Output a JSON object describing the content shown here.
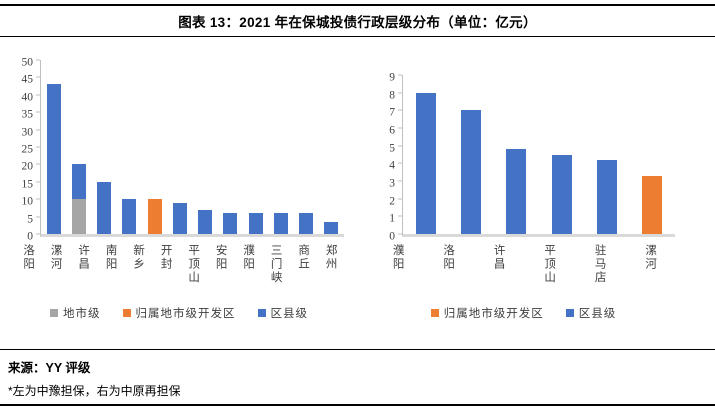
{
  "header": {
    "title": "图表 13：2021 年在保城投债行政层级分布（单位：亿元）"
  },
  "footer": {
    "source": "来源：YY 评级",
    "note": "*左为中豫担保，右为中原再担保"
  },
  "colors": {
    "blue": "#4472C4",
    "orange": "#ED7D31",
    "gray": "#A5A5A5",
    "axis_line": "#BFBFBF",
    "baseline": "#D9D9D9",
    "tick_text": "#404040"
  },
  "chart_data": [
    {
      "type": "bar",
      "stacked": true,
      "title": "",
      "xlabel": "",
      "ylabel": "",
      "categories": [
        "洛阳",
        "漯河",
        "许昌",
        "南阳",
        "新乡",
        "开封",
        "平顶山",
        "安阳",
        "濮阳",
        "三门峡",
        "商丘",
        "郑州"
      ],
      "series": [
        {
          "name": "地市级",
          "color_key": "gray",
          "values": [
            0,
            10,
            0,
            0,
            0,
            0,
            0,
            0,
            0,
            0,
            0,
            0
          ]
        },
        {
          "name": "归属地市级开发区",
          "color_key": "orange",
          "values": [
            0,
            0,
            0,
            0,
            10,
            0,
            0,
            0,
            0,
            0,
            0,
            0
          ]
        },
        {
          "name": "区县级",
          "color_key": "blue",
          "values": [
            43,
            10,
            15,
            10,
            0,
            9,
            7,
            6,
            6,
            6,
            6,
            3.5
          ]
        }
      ],
      "ylim": [
        0,
        50
      ],
      "ytick_step": 5,
      "grid": false,
      "legend_position": "bottom",
      "legend": [
        {
          "label": "地市级",
          "color_key": "gray"
        },
        {
          "label": "归属地市级开发区",
          "color_key": "orange"
        },
        {
          "label": "区县级",
          "color_key": "blue"
        }
      ]
    },
    {
      "type": "bar",
      "stacked": false,
      "title": "",
      "xlabel": "",
      "ylabel": "",
      "categories": [
        "濮阳",
        "洛阳",
        "许昌",
        "平顶山",
        "驻马店",
        "漯河"
      ],
      "series": [
        {
          "name": "归属地市级开发区",
          "color_key": "orange",
          "values": [
            0,
            0,
            0,
            0,
            0,
            3.3
          ]
        },
        {
          "name": "区县级",
          "color_key": "blue",
          "values": [
            8,
            7,
            4.8,
            4.5,
            4.2,
            0
          ]
        }
      ],
      "ylim": [
        0,
        9
      ],
      "ytick_step": 1,
      "grid": false,
      "legend_position": "bottom",
      "legend": [
        {
          "label": "归属地市级开发区",
          "color_key": "orange"
        },
        {
          "label": "区县级",
          "color_key": "blue"
        }
      ]
    }
  ]
}
